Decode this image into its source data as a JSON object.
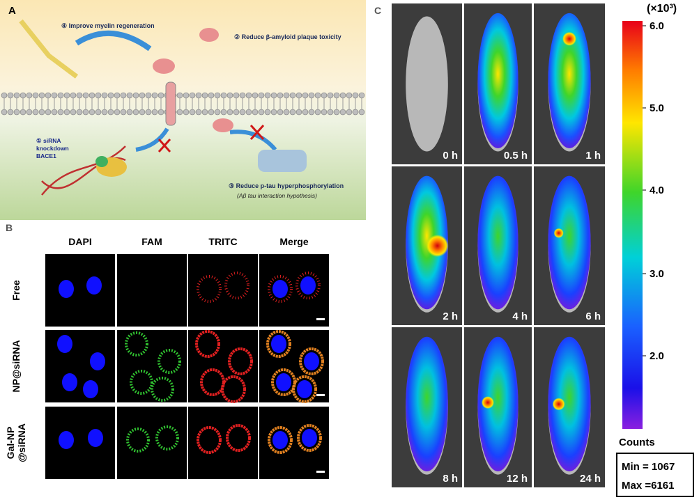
{
  "panel_a": {
    "label": "A",
    "step1": [
      "① siRNA",
      "knockdown",
      "BACE1"
    ],
    "step2": "② Reduce β-amyloid plaque toxicity",
    "step3": "③ Reduce p-tau hyperphosphorylation",
    "step3_note": "(Aβ tau interaction hypothesis)",
    "step4": "④ Improve myelin regeneration"
  },
  "panel_b": {
    "label": "B",
    "columns": [
      "DAPI",
      "FAM",
      "TRITC",
      "Merge"
    ],
    "rows": [
      [
        "Free"
      ],
      [
        "NP@siRNA"
      ],
      [
        "Gal-NP",
        "@siRNA"
      ]
    ]
  },
  "panel_c": {
    "label": "C",
    "times": [
      "0 h",
      "0.5 h",
      "1 h",
      "2 h",
      "4 h",
      "6 h",
      "8 h",
      "12 h",
      "24 h"
    ],
    "colorbar": {
      "unit": "(×10³)",
      "ticks": [
        "6.0",
        "5.0",
        "4.0",
        "3.0",
        "2.0"
      ],
      "label": "Counts",
      "min": "Min = 1067",
      "max": "Max =6161"
    }
  }
}
